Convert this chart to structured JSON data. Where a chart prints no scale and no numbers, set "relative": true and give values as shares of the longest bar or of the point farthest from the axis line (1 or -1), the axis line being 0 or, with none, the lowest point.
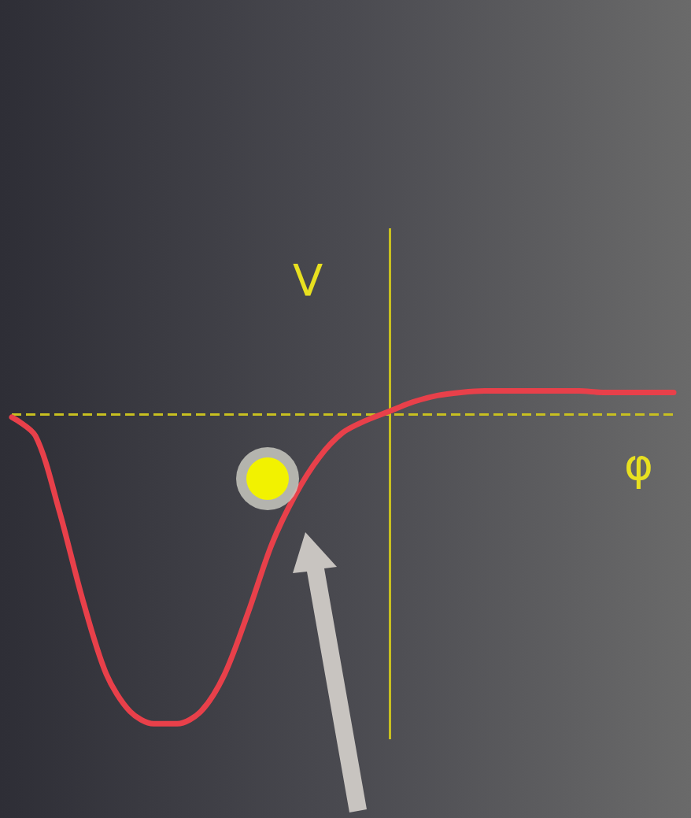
{
  "chart_data": {
    "type": "line",
    "relative": true,
    "xlabel": "φ",
    "ylabel": "V",
    "categories": [
      null,
      null,
      null,
      null,
      null,
      null,
      null,
      null,
      null,
      null,
      null,
      null,
      null,
      null,
      null,
      null,
      null,
      null,
      null,
      null,
      null,
      null,
      null,
      null,
      null,
      null,
      null,
      null,
      null
    ],
    "series": [
      {
        "color": "#e8404a",
        "values": [
          -0.01,
          -0.07,
          -0.31,
          -0.6,
          -0.84,
          -0.96,
          -1,
          -1,
          -0.96,
          -0.84,
          -0.64,
          -0.42,
          -0.26,
          -0.14,
          -0.06,
          -0.02,
          0.01,
          0.04,
          0.06,
          0.07,
          0.075,
          0.075,
          0.075,
          0.075,
          0.075,
          0.07,
          0.07,
          0.07,
          0.07
        ]
      }
    ],
    "ref_lines": [
      {
        "axis": "y",
        "value": 0,
        "line_style": "dashed",
        "color": "#c8c020"
      }
    ],
    "marker": "none",
    "grid": false
  }
}
